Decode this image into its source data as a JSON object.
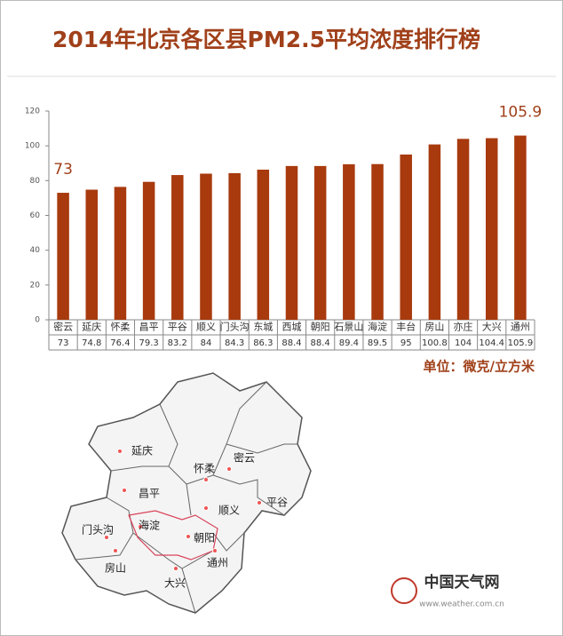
{
  "chart_data": {
    "type": "bar",
    "title": "2014年北京各区县PM2.5平均浓度排行榜",
    "unit_note": "单位：微克/立方米",
    "categories": [
      "密云",
      "延庆",
      "怀柔",
      "昌平",
      "平谷",
      "顺义",
      "门头沟",
      "东城",
      "西城",
      "朝阳",
      "石景山",
      "海淀",
      "丰台",
      "房山",
      "亦庄",
      "大兴",
      "通州"
    ],
    "values": [
      73,
      74.8,
      76.4,
      79.3,
      83.2,
      84,
      84.3,
      86.3,
      88.4,
      88.4,
      89.4,
      89.5,
      95,
      100.8,
      104,
      104.4,
      105.9
    ],
    "color": "#a83a0e",
    "ylim": [
      0,
      120
    ],
    "yticks": [
      0,
      20,
      40,
      60,
      80,
      100,
      120
    ],
    "grid": false
  },
  "map": {
    "labels": [
      "延庆",
      "怀柔",
      "密云",
      "昌平",
      "顺义",
      "平谷",
      "门头沟",
      "海淀",
      "朝阳",
      "房山",
      "通州",
      "大兴"
    ]
  },
  "logo": {
    "name": "中国天气网",
    "url": "www.weather.com.cn"
  }
}
